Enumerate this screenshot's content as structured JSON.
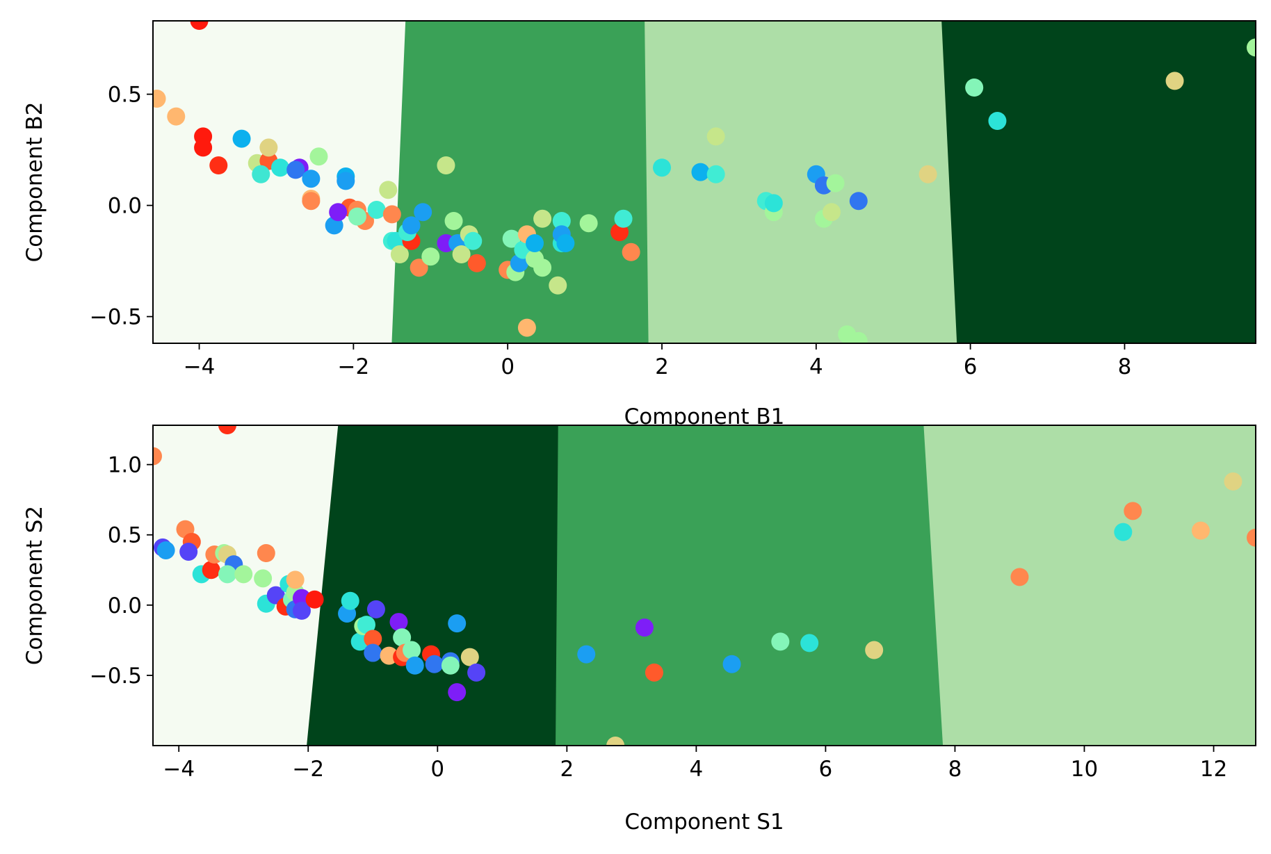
{
  "chart_data": [
    {
      "type": "scatter",
      "xlabel": "Component B1",
      "ylabel": "Component B2",
      "xlim": [
        -4.6,
        9.7
      ],
      "ylim": [
        -0.62,
        0.83
      ],
      "xticks": [
        -4,
        -2,
        0,
        2,
        4,
        6,
        8
      ],
      "xtick_labels": [
        "−4",
        "−2",
        "0",
        "2",
        "4",
        "6",
        "8"
      ],
      "yticks": [
        -0.5,
        0.0,
        0.5
      ],
      "ytick_labels": [
        "−0.5",
        "0.0",
        "0.5"
      ],
      "grid": false,
      "regions": [
        {
          "color": "#f5fbf2",
          "boundary_right": [
            [
              -1.5,
              -0.62
            ],
            [
              -1.32,
              0.83
            ]
          ]
        },
        {
          "color": "#3aa157",
          "boundary_right": [
            [
              1.83,
              -0.62
            ],
            [
              1.78,
              0.83
            ]
          ]
        },
        {
          "color": "#addea7",
          "boundary_right": [
            [
              5.83,
              -0.62
            ],
            [
              5.63,
              0.83
            ]
          ]
        },
        {
          "color": "#00441b"
        }
      ],
      "points": [
        {
          "x": -4.0,
          "y": 0.83,
          "color": "#ff1a0d"
        },
        {
          "x": -4.55,
          "y": 0.48,
          "color": "#ffb76f"
        },
        {
          "x": -4.3,
          "y": 0.4,
          "color": "#ffb76f"
        },
        {
          "x": -3.95,
          "y": 0.31,
          "color": "#ff1a0d"
        },
        {
          "x": -3.95,
          "y": 0.26,
          "color": "#ff1a0d"
        },
        {
          "x": -3.75,
          "y": 0.18,
          "color": "#ff2e14"
        },
        {
          "x": -3.45,
          "y": 0.3,
          "color": "#0cb0ee"
        },
        {
          "x": -3.25,
          "y": 0.19,
          "color": "#c6e68a"
        },
        {
          "x": -3.1,
          "y": 0.2,
          "color": "#ff5a2b"
        },
        {
          "x": -3.1,
          "y": 0.26,
          "color": "#e0d382"
        },
        {
          "x": -3.2,
          "y": 0.14,
          "color": "#3fe6d2"
        },
        {
          "x": -2.95,
          "y": 0.17,
          "color": "#2ce3d8"
        },
        {
          "x": -2.7,
          "y": 0.17,
          "color": "#7e1ef7"
        },
        {
          "x": -2.75,
          "y": 0.16,
          "color": "#3076f0"
        },
        {
          "x": -2.55,
          "y": 0.12,
          "color": "#1b9ef2"
        },
        {
          "x": -2.45,
          "y": 0.22,
          "color": "#a3f59b"
        },
        {
          "x": -2.55,
          "y": 0.03,
          "color": "#ffb76f"
        },
        {
          "x": -2.55,
          "y": 0.02,
          "color": "#ff874e"
        },
        {
          "x": -2.1,
          "y": 0.13,
          "color": "#0cb0ee"
        },
        {
          "x": -2.1,
          "y": 0.11,
          "color": "#1b9ef2"
        },
        {
          "x": -2.25,
          "y": -0.09,
          "color": "#1b9ef2"
        },
        {
          "x": -2.05,
          "y": -0.01,
          "color": "#ff5a2b"
        },
        {
          "x": -2.2,
          "y": -0.03,
          "color": "#7e1ef7"
        },
        {
          "x": -1.95,
          "y": -0.02,
          "color": "#ff874e"
        },
        {
          "x": -1.85,
          "y": -0.07,
          "color": "#ff874e"
        },
        {
          "x": -1.95,
          "y": -0.05,
          "color": "#84f5b8"
        },
        {
          "x": -1.7,
          "y": -0.02,
          "color": "#40ecd4"
        },
        {
          "x": -1.55,
          "y": 0.07,
          "color": "#c6e68a"
        },
        {
          "x": -1.5,
          "y": -0.04,
          "color": "#ff874e"
        },
        {
          "x": -1.5,
          "y": -0.16,
          "color": "#40ecd4"
        },
        {
          "x": -1.45,
          "y": -0.16,
          "color": "#2ce3d8"
        },
        {
          "x": -1.4,
          "y": -0.22,
          "color": "#c6e68a"
        },
        {
          "x": -1.25,
          "y": -0.16,
          "color": "#ff2e14"
        },
        {
          "x": -1.3,
          "y": -0.12,
          "color": "#40ecd4"
        },
        {
          "x": -1.25,
          "y": -0.09,
          "color": "#1b9ef2"
        },
        {
          "x": -1.1,
          "y": -0.03,
          "color": "#1b9ef2"
        },
        {
          "x": -1.15,
          "y": -0.28,
          "color": "#ff874e"
        },
        {
          "x": -1.0,
          "y": -0.23,
          "color": "#a3f59b"
        },
        {
          "x": -0.8,
          "y": 0.18,
          "color": "#c6e68a"
        },
        {
          "x": -0.7,
          "y": -0.07,
          "color": "#a3f59b"
        },
        {
          "x": -0.8,
          "y": -0.17,
          "color": "#7e1ef7"
        },
        {
          "x": -0.65,
          "y": -0.17,
          "color": "#1b9ef2"
        },
        {
          "x": -0.6,
          "y": -0.22,
          "color": "#c6e68a"
        },
        {
          "x": -0.5,
          "y": -0.13,
          "color": "#c6e68a"
        },
        {
          "x": -0.45,
          "y": -0.16,
          "color": "#40ecd4"
        },
        {
          "x": -0.4,
          "y": -0.26,
          "color": "#ff5a2b"
        },
        {
          "x": 0.0,
          "y": -0.29,
          "color": "#ff874e"
        },
        {
          "x": 0.05,
          "y": -0.15,
          "color": "#84f5b8"
        },
        {
          "x": 0.1,
          "y": -0.3,
          "color": "#a3f59b"
        },
        {
          "x": 0.15,
          "y": -0.26,
          "color": "#1b9ef2"
        },
        {
          "x": 0.2,
          "y": -0.2,
          "color": "#40ecd4"
        },
        {
          "x": 0.25,
          "y": -0.13,
          "color": "#ffb76f"
        },
        {
          "x": 0.25,
          "y": -0.55,
          "color": "#ffb76f"
        },
        {
          "x": 0.35,
          "y": -0.24,
          "color": "#a3f59b"
        },
        {
          "x": 0.35,
          "y": -0.17,
          "color": "#0cb0ee"
        },
        {
          "x": 0.45,
          "y": -0.06,
          "color": "#c6e68a"
        },
        {
          "x": 0.45,
          "y": -0.28,
          "color": "#a3f59b"
        },
        {
          "x": 0.65,
          "y": -0.36,
          "color": "#c6e68a"
        },
        {
          "x": 0.7,
          "y": -0.07,
          "color": "#40ecd4"
        },
        {
          "x": 0.7,
          "y": -0.17,
          "color": "#2ce3d8"
        },
        {
          "x": 0.7,
          "y": -0.13,
          "color": "#1b9ef2"
        },
        {
          "x": 0.75,
          "y": -0.17,
          "color": "#0cb0ee"
        },
        {
          "x": 1.05,
          "y": -0.08,
          "color": "#a3f59b"
        },
        {
          "x": 1.45,
          "y": -0.12,
          "color": "#ff2e14"
        },
        {
          "x": 1.5,
          "y": -0.06,
          "color": "#40ecd4"
        },
        {
          "x": 1.6,
          "y": -0.21,
          "color": "#ff874e"
        },
        {
          "x": 2.0,
          "y": 0.17,
          "color": "#2ce3d8"
        },
        {
          "x": 2.5,
          "y": 0.15,
          "color": "#0cb0ee"
        },
        {
          "x": 2.7,
          "y": 0.31,
          "color": "#c6e68a"
        },
        {
          "x": 2.7,
          "y": 0.14,
          "color": "#40ecd4"
        },
        {
          "x": 3.35,
          "y": 0.02,
          "color": "#40ecd4"
        },
        {
          "x": 3.45,
          "y": -0.03,
          "color": "#a3f59b"
        },
        {
          "x": 3.45,
          "y": 0.01,
          "color": "#2ce3d8"
        },
        {
          "x": 4.0,
          "y": 0.14,
          "color": "#1b9ef2"
        },
        {
          "x": 4.1,
          "y": 0.09,
          "color": "#3076f0"
        },
        {
          "x": 4.1,
          "y": -0.06,
          "color": "#a3f59b"
        },
        {
          "x": 4.2,
          "y": -0.03,
          "color": "#c6e68a"
        },
        {
          "x": 4.25,
          "y": 0.1,
          "color": "#a3f59b"
        },
        {
          "x": 4.4,
          "y": -0.58,
          "color": "#a3f59b"
        },
        {
          "x": 4.55,
          "y": 0.02,
          "color": "#3076f0"
        },
        {
          "x": 4.55,
          "y": -0.61,
          "color": "#a3f59b"
        },
        {
          "x": 5.45,
          "y": 0.14,
          "color": "#e0d382"
        },
        {
          "x": 6.05,
          "y": 0.53,
          "color": "#84f5b8"
        },
        {
          "x": 6.35,
          "y": 0.38,
          "color": "#2ce3d8"
        },
        {
          "x": 8.65,
          "y": 0.56,
          "color": "#e0d382"
        },
        {
          "x": 9.7,
          "y": 0.71,
          "color": "#a3f59b"
        }
      ]
    },
    {
      "type": "scatter",
      "xlabel": "Component S1",
      "ylabel": "Component S2",
      "xlim": [
        -4.4,
        12.65
      ],
      "ylim": [
        -1.0,
        1.28
      ],
      "xticks": [
        -4,
        -2,
        0,
        2,
        4,
        6,
        8,
        10,
        12
      ],
      "xtick_labels": [
        "−4",
        "−2",
        "0",
        "2",
        "4",
        "6",
        "8",
        "10",
        "12"
      ],
      "yticks": [
        -0.5,
        0.0,
        0.5,
        1.0
      ],
      "ytick_labels": [
        "−0.5",
        "0.0",
        "0.5",
        "1.0"
      ],
      "grid": false,
      "regions": [
        {
          "color": "#f5fbf2",
          "boundary_right": [
            [
              -2.02,
              -1.0
            ],
            [
              -1.53,
              1.28
            ]
          ]
        },
        {
          "color": "#00441b",
          "boundary_right": [
            [
              1.83,
              -1.0
            ],
            [
              1.87,
              1.28
            ]
          ]
        },
        {
          "color": "#3aa157",
          "boundary_right": [
            [
              7.82,
              -1.0
            ],
            [
              7.52,
              1.28
            ]
          ]
        },
        {
          "color": "#addea7"
        }
      ],
      "points": [
        {
          "x": -3.25,
          "y": 1.28,
          "color": "#ff2e14"
        },
        {
          "x": -4.4,
          "y": 1.06,
          "color": "#ff874e"
        },
        {
          "x": -4.25,
          "y": 0.41,
          "color": "#5544f7"
        },
        {
          "x": -4.2,
          "y": 0.39,
          "color": "#1b9ef2"
        },
        {
          "x": -3.9,
          "y": 0.54,
          "color": "#ff874e"
        },
        {
          "x": -3.8,
          "y": 0.45,
          "color": "#ff5a2b"
        },
        {
          "x": -3.85,
          "y": 0.38,
          "color": "#5544f7"
        },
        {
          "x": -3.65,
          "y": 0.22,
          "color": "#2ce3d8"
        },
        {
          "x": -3.5,
          "y": 0.25,
          "color": "#ff2e14"
        },
        {
          "x": -3.45,
          "y": 0.36,
          "color": "#ff874e"
        },
        {
          "x": -3.3,
          "y": 0.37,
          "color": "#a3f59b"
        },
        {
          "x": -3.25,
          "y": 0.36,
          "color": "#e0d382"
        },
        {
          "x": -3.15,
          "y": 0.29,
          "color": "#3076f0"
        },
        {
          "x": -3.25,
          "y": 0.22,
          "color": "#84f5b8"
        },
        {
          "x": -3.0,
          "y": 0.22,
          "color": "#a3f59b"
        },
        {
          "x": -2.7,
          "y": 0.19,
          "color": "#a3f59b"
        },
        {
          "x": -2.65,
          "y": 0.37,
          "color": "#ff874e"
        },
        {
          "x": -2.65,
          "y": 0.01,
          "color": "#2ce3d8"
        },
        {
          "x": -2.5,
          "y": 0.07,
          "color": "#5544f7"
        },
        {
          "x": -2.35,
          "y": -0.01,
          "color": "#ff2e14"
        },
        {
          "x": -2.3,
          "y": 0.15,
          "color": "#2ce3d8"
        },
        {
          "x": -2.25,
          "y": 0.04,
          "color": "#84f5b8"
        },
        {
          "x": -2.2,
          "y": 0.09,
          "color": "#a3f59b"
        },
        {
          "x": -2.2,
          "y": -0.03,
          "color": "#3076f0"
        },
        {
          "x": -2.1,
          "y": 0.05,
          "color": "#7e1ef7"
        },
        {
          "x": -2.1,
          "y": -0.04,
          "color": "#5544f7"
        },
        {
          "x": -2.2,
          "y": 0.18,
          "color": "#ffb76f"
        },
        {
          "x": -1.9,
          "y": 0.04,
          "color": "#ff1a0d"
        },
        {
          "x": -1.4,
          "y": -0.06,
          "color": "#1b9ef2"
        },
        {
          "x": -1.35,
          "y": 0.03,
          "color": "#2ce3d8"
        },
        {
          "x": -1.2,
          "y": -0.26,
          "color": "#2ce3d8"
        },
        {
          "x": -1.15,
          "y": -0.15,
          "color": "#a3f59b"
        },
        {
          "x": -1.1,
          "y": -0.14,
          "color": "#40ecd4"
        },
        {
          "x": -1.0,
          "y": -0.24,
          "color": "#ff5a2b"
        },
        {
          "x": -1.0,
          "y": -0.34,
          "color": "#3076f0"
        },
        {
          "x": -0.95,
          "y": -0.03,
          "color": "#5544f7"
        },
        {
          "x": -0.75,
          "y": -0.36,
          "color": "#ffb76f"
        },
        {
          "x": -0.6,
          "y": -0.12,
          "color": "#7e1ef7"
        },
        {
          "x": -0.55,
          "y": -0.37,
          "color": "#ff2e14"
        },
        {
          "x": -0.55,
          "y": -0.23,
          "color": "#84f5b8"
        },
        {
          "x": -0.5,
          "y": -0.34,
          "color": "#ff874e"
        },
        {
          "x": -0.4,
          "y": -0.32,
          "color": "#84f5b8"
        },
        {
          "x": -0.35,
          "y": -0.43,
          "color": "#1b9ef2"
        },
        {
          "x": -0.1,
          "y": -0.35,
          "color": "#ff2e14"
        },
        {
          "x": -0.05,
          "y": -0.42,
          "color": "#3076f0"
        },
        {
          "x": 0.2,
          "y": -0.4,
          "color": "#3076f0"
        },
        {
          "x": 0.2,
          "y": -0.43,
          "color": "#84f5b8"
        },
        {
          "x": 0.3,
          "y": -0.13,
          "color": "#1b9ef2"
        },
        {
          "x": 0.3,
          "y": -0.62,
          "color": "#7e1ef7"
        },
        {
          "x": 0.5,
          "y": -0.37,
          "color": "#e0d382"
        },
        {
          "x": 0.6,
          "y": -0.48,
          "color": "#5544f7"
        },
        {
          "x": 2.3,
          "y": -0.35,
          "color": "#1b9ef2"
        },
        {
          "x": 2.75,
          "y": -1.0,
          "color": "#e0d382"
        },
        {
          "x": 3.2,
          "y": -0.16,
          "color": "#7e1ef7"
        },
        {
          "x": 3.35,
          "y": -0.48,
          "color": "#ff5a2b"
        },
        {
          "x": 4.55,
          "y": -0.42,
          "color": "#1b9ef2"
        },
        {
          "x": 5.3,
          "y": -0.26,
          "color": "#84f5b8"
        },
        {
          "x": 5.75,
          "y": -0.27,
          "color": "#2ce3d8"
        },
        {
          "x": 6.75,
          "y": -0.32,
          "color": "#e0d382"
        },
        {
          "x": 9.0,
          "y": 0.2,
          "color": "#ff874e"
        },
        {
          "x": 10.6,
          "y": 0.52,
          "color": "#2ce3d8"
        },
        {
          "x": 10.75,
          "y": 0.67,
          "color": "#ff874e"
        },
        {
          "x": 11.8,
          "y": 0.53,
          "color": "#ffb76f"
        },
        {
          "x": 12.3,
          "y": 0.88,
          "color": "#e0d382"
        },
        {
          "x": 12.65,
          "y": 0.48,
          "color": "#ff874e"
        }
      ]
    }
  ]
}
